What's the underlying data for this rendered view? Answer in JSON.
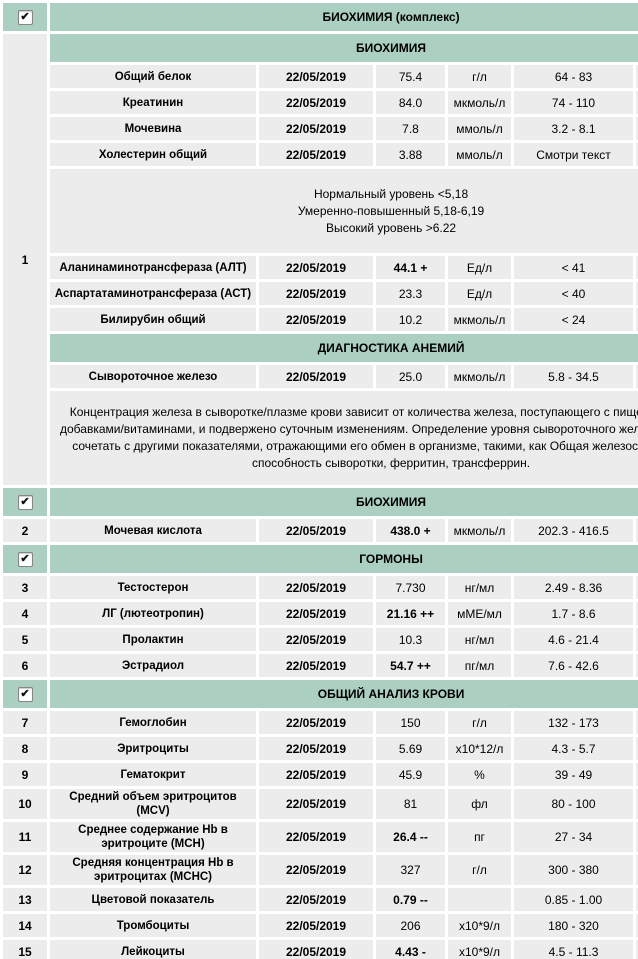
{
  "colors": {
    "header_green": "#abd0c1",
    "cell_gray": "#ececec",
    "page_bg": "#ffffff"
  },
  "checkbox_glyph": "✔",
  "blocks": [
    {
      "type": "group",
      "label": "БИОХИМИЯ (комплекс)",
      "checked": true
    },
    {
      "type": "subheader",
      "label": "БИОХИМИЯ",
      "section": {
        "number": "1",
        "rowspan": 12
      }
    },
    {
      "type": "result",
      "name": "Общий белок",
      "date": "22/05/2019",
      "value": "75.4",
      "flagged": false,
      "unit": "г/л",
      "range": "64 - 83"
    },
    {
      "type": "result",
      "name": "Креатинин",
      "date": "22/05/2019",
      "value": "84.0",
      "flagged": false,
      "unit": "мкмоль/л",
      "range": "74 - 110"
    },
    {
      "type": "result",
      "name": "Мочевина",
      "date": "22/05/2019",
      "value": "7.8",
      "flagged": false,
      "unit": "ммоль/л",
      "range": "3.2 - 8.1"
    },
    {
      "type": "result",
      "name": "Холестерин общий",
      "date": "22/05/2019",
      "value": "3.88",
      "flagged": false,
      "unit": "ммоль/л",
      "range": "Смотри текст"
    },
    {
      "type": "note",
      "height": 68,
      "lines": [
        "Нормальный уровень <5,18",
        "Умеренно-повышенный 5,18-6,19",
        "Высокий уровень >6.22"
      ]
    },
    {
      "type": "result",
      "name": "Аланинаминотрансфераза (АЛТ)",
      "date": "22/05/2019",
      "value": "44.1 +",
      "flagged": true,
      "unit": "Ед/л",
      "range": "< 41"
    },
    {
      "type": "result",
      "name": "Аспартатаминотрансфераза (АСТ)",
      "date": "22/05/2019",
      "value": "23.3",
      "flagged": false,
      "unit": "Ед/л",
      "range": "< 40"
    },
    {
      "type": "result",
      "name": "Билирубин общий",
      "date": "22/05/2019",
      "value": "10.2",
      "flagged": false,
      "unit": "мкмоль/л",
      "range": "< 24"
    },
    {
      "type": "subheader",
      "label": "ДИАГНОСТИКА АНЕМИЙ"
    },
    {
      "type": "result",
      "name": "Сывороточное железо",
      "date": "22/05/2019",
      "value": "25.0",
      "flagged": false,
      "unit": "мкмоль/л",
      "range": "5.8 - 34.5"
    },
    {
      "type": "note",
      "height": 78,
      "lines": [
        "Концентрация железа в сыворотке/плазме крови зависит от количества железа, поступающего с пищей/пищевыми",
        "добавками/витаминами, и подвержено суточным изменениям. Определение уровня сывороточного железа рекомендуется",
        "сочетать с другими показателями, отражающими его обмен в организме, такими, как Общая железосвязывающая",
        "способность сыворотки, ферритин, трансферрин."
      ]
    },
    {
      "type": "group",
      "label": "БИОХИМИЯ",
      "checked": true
    },
    {
      "type": "result",
      "number": "2",
      "name": "Мочевая кислота",
      "date": "22/05/2019",
      "value": "438.0 +",
      "flagged": true,
      "unit": "мкмоль/л",
      "range": "202.3 - 416.5"
    },
    {
      "type": "group",
      "label": "ГОРМОНЫ",
      "checked": true
    },
    {
      "type": "result",
      "number": "3",
      "name": "Тестостерон",
      "date": "22/05/2019",
      "value": "7.730",
      "flagged": false,
      "unit": "нг/мл",
      "range": "2.49 - 8.36"
    },
    {
      "type": "result",
      "number": "4",
      "name": "ЛГ (лютеотропин)",
      "date": "22/05/2019",
      "value": "21.16 ++",
      "flagged": true,
      "unit": "мМЕ/мл",
      "range": "1.7 - 8.6"
    },
    {
      "type": "result",
      "number": "5",
      "name": "Пролактин",
      "date": "22/05/2019",
      "value": "10.3",
      "flagged": false,
      "unit": "нг/мл",
      "range": "4.6 - 21.4"
    },
    {
      "type": "result",
      "number": "6",
      "name": "Эстрадиол",
      "date": "22/05/2019",
      "value": "54.7 ++",
      "flagged": true,
      "unit": "пг/мл",
      "range": "7.6 - 42.6"
    },
    {
      "type": "group",
      "label": "ОБЩИЙ АНАЛИЗ КРОВИ",
      "checked": true
    },
    {
      "type": "result",
      "number": "7",
      "name": "Гемоглобин",
      "date": "22/05/2019",
      "value": "150",
      "flagged": false,
      "unit": "г/л",
      "range": "132 - 173"
    },
    {
      "type": "result",
      "number": "8",
      "name": "Эритроциты",
      "date": "22/05/2019",
      "value": "5.69",
      "flagged": false,
      "unit": "x10*12/л",
      "range": "4.3 - 5.7"
    },
    {
      "type": "result",
      "number": "9",
      "name": "Гематокрит",
      "date": "22/05/2019",
      "value": "45.9",
      "flagged": false,
      "unit": "%",
      "range": "39 - 49"
    },
    {
      "type": "result",
      "number": "10",
      "name": "Средний объем эритроцитов (MCV)",
      "date": "22/05/2019",
      "value": "81",
      "flagged": false,
      "unit": "фл",
      "range": "80 - 100"
    },
    {
      "type": "result",
      "number": "11",
      "name": "Среднее содержание Hb в эритроците (MCH)",
      "date": "22/05/2019",
      "value": "26.4 --",
      "flagged": true,
      "unit": "пг",
      "range": "27 - 34"
    },
    {
      "type": "result",
      "number": "12",
      "name": "Средняя концентрация Hb в эритроцитах (MCHC)",
      "date": "22/05/2019",
      "value": "327",
      "flagged": false,
      "unit": "г/л",
      "range": "300 - 380"
    },
    {
      "type": "result",
      "number": "13",
      "name": "Цветовой показатель",
      "date": "22/05/2019",
      "value": "0.79 --",
      "flagged": true,
      "unit": "",
      "range": "0.85 - 1.00"
    },
    {
      "type": "result",
      "number": "14",
      "name": "Тромбоциты",
      "date": "22/05/2019",
      "value": "206",
      "flagged": false,
      "unit": "x10*9/л",
      "range": "180 - 320"
    },
    {
      "type": "result",
      "number": "15",
      "name": "Лейкоциты",
      "date": "22/05/2019",
      "value": "4.43 -",
      "flagged": true,
      "unit": "x10*9/л",
      "range": "4.5 - 11.3"
    },
    {
      "type": "group",
      "label": "",
      "checked": true,
      "partial": true
    }
  ]
}
